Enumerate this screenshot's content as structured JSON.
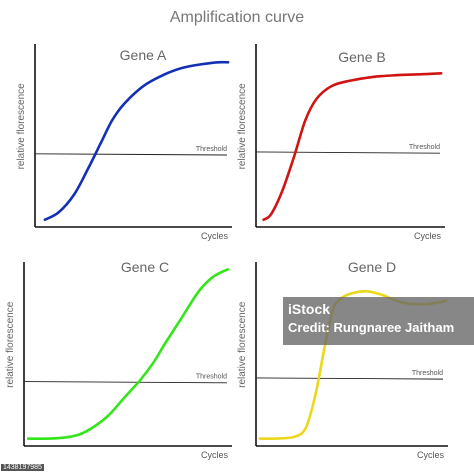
{
  "title": "Amplification curve",
  "axis_text": {
    "ylabel": "relative florescence",
    "xlabel": "Cycles",
    "threshold": "Threshold"
  },
  "watermark": {
    "logo": "iStock",
    "credit": "Credit: Rungnaree Jaitham",
    "id": "1438197985"
  },
  "chart_data": [
    {
      "type": "line",
      "title": "Gene A",
      "xlabel": "Cycles",
      "ylabel": "relative florescence",
      "threshold_label": "Threshold",
      "threshold": 0.4,
      "ylim": [
        0,
        1
      ],
      "xlim": [
        0,
        1
      ],
      "series": [
        {
          "color": "#1431b4",
          "x": [
            0.05,
            0.12,
            0.2,
            0.27,
            0.33,
            0.39,
            0.45,
            0.55,
            0.65,
            0.75,
            0.85,
            0.93,
            0.98
          ],
          "y": [
            0.04,
            0.08,
            0.18,
            0.32,
            0.45,
            0.58,
            0.67,
            0.77,
            0.83,
            0.87,
            0.89,
            0.9,
            0.9
          ]
        }
      ]
    },
    {
      "type": "line",
      "title": "Gene B",
      "xlabel": "Cycles",
      "ylabel": "relative florescence",
      "threshold_label": "Threshold",
      "threshold": 0.41,
      "ylim": [
        0,
        1
      ],
      "xlim": [
        0,
        1
      ],
      "series": [
        {
          "color": "#d01414",
          "x": [
            0.04,
            0.08,
            0.14,
            0.2,
            0.26,
            0.32,
            0.4,
            0.5,
            0.62,
            0.75,
            0.88,
            0.98
          ],
          "y": [
            0.04,
            0.07,
            0.2,
            0.38,
            0.58,
            0.7,
            0.77,
            0.8,
            0.82,
            0.83,
            0.835,
            0.84
          ]
        }
      ]
    },
    {
      "type": "line",
      "title": "Gene C",
      "xlabel": "Cycles",
      "ylabel": "relative florescence",
      "threshold_label": "Threshold",
      "threshold": 0.35,
      "ylim": [
        0,
        1
      ],
      "xlim": [
        0,
        1
      ],
      "series": [
        {
          "color": "#33e61a",
          "x": [
            0.02,
            0.12,
            0.22,
            0.3,
            0.4,
            0.48,
            0.56,
            0.62,
            0.68,
            0.76,
            0.84,
            0.91,
            0.98
          ],
          "y": [
            0.04,
            0.04,
            0.05,
            0.08,
            0.16,
            0.26,
            0.36,
            0.45,
            0.56,
            0.7,
            0.84,
            0.92,
            0.96
          ]
        }
      ]
    },
    {
      "type": "line",
      "title": "Gene D",
      "xlabel": "Cycles",
      "ylabel": "relative florescence",
      "threshold_label": "Threshold",
      "threshold": 0.37,
      "ylim": [
        0,
        1
      ],
      "xlim": [
        0,
        1
      ],
      "series": [
        {
          "color": "#ecd81a",
          "x": [
            0.02,
            0.1,
            0.2,
            0.26,
            0.31,
            0.36,
            0.4,
            0.44,
            0.5,
            0.58,
            0.66,
            0.76,
            0.86,
            0.95,
            0.99
          ],
          "y": [
            0.04,
            0.04,
            0.05,
            0.1,
            0.28,
            0.55,
            0.74,
            0.8,
            0.83,
            0.84,
            0.82,
            0.78,
            0.77,
            0.78,
            0.79
          ]
        }
      ]
    }
  ]
}
